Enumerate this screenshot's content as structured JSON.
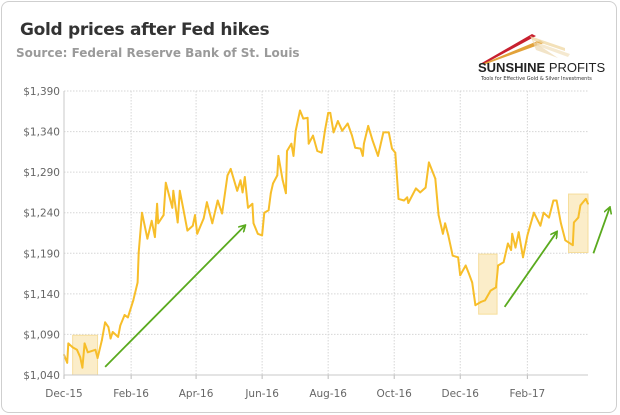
{
  "header": {
    "title": "Gold prices after Fed hikes",
    "subtitle": "Source: Federal Reserve Bank of St. Louis"
  },
  "logo": {
    "name_bold": "SUNSHINE",
    "name_light": "PROFITS",
    "tagline": "Tools for Effective Gold & Silver Investments"
  },
  "chart_data": {
    "type": "line",
    "title": "Gold prices after Fed hikes",
    "xlabel": "",
    "ylabel": "",
    "grid": true,
    "legend": "none",
    "line_color": "#F7BE2A",
    "x_range": [
      "2015-12-01",
      "2017-03-29"
    ],
    "ylim": [
      1040,
      1390
    ],
    "y_ticks": [
      1040,
      1090,
      1140,
      1190,
      1240,
      1290,
      1340,
      1390
    ],
    "y_tick_labels": [
      "$1,040",
      "$1,090",
      "$1,140",
      "$1,190",
      "$1,240",
      "$1,290",
      "$1,340",
      "$1,390"
    ],
    "x_ticks": [
      "2015-12-01",
      "2016-02-01",
      "2016-04-01",
      "2016-06-01",
      "2016-08-01",
      "2016-10-01",
      "2016-12-01",
      "2017-02-01"
    ],
    "x_tick_labels": [
      "Dec-15",
      "Feb-16",
      "Apr-16",
      "Jun-16",
      "Aug-16",
      "Oct-16",
      "Dec-16",
      "Feb-17"
    ],
    "series": [
      {
        "x": [
          "2015-12-01",
          "2015-12-04",
          "2015-12-05",
          "2015-12-09",
          "2015-12-13",
          "2015-12-16",
          "2015-12-18",
          "2015-12-20",
          "2015-12-23",
          "2015-12-30",
          "2016-01-01",
          "2016-01-05",
          "2016-01-08",
          "2016-01-11",
          "2016-01-13",
          "2016-01-15",
          "2016-01-20",
          "2016-01-22",
          "2016-01-26",
          "2016-01-29",
          "2016-02-03",
          "2016-02-07",
          "2016-02-08",
          "2016-02-11",
          "2016-02-16",
          "2016-02-20",
          "2016-02-23",
          "2016-02-25",
          "2016-02-26",
          "2016-03-02",
          "2016-03-04",
          "2016-03-10",
          "2016-03-11",
          "2016-03-15",
          "2016-03-17",
          "2016-03-20",
          "2016-03-24",
          "2016-03-29",
          "2016-03-31",
          "2016-04-02",
          "2016-04-08",
          "2016-04-11",
          "2016-04-16",
          "2016-04-21",
          "2016-04-25",
          "2016-04-30",
          "2016-05-03",
          "2016-05-09",
          "2016-05-12",
          "2016-05-14",
          "2016-05-16",
          "2016-05-19",
          "2016-05-23",
          "2016-05-24",
          "2016-05-28",
          "2016-06-01",
          "2016-06-03",
          "2016-06-07",
          "2016-06-09",
          "2016-06-11",
          "2016-06-15",
          "2016-06-16",
          "2016-06-20",
          "2016-06-23",
          "2016-06-24",
          "2016-06-28",
          "2016-06-30",
          "2016-07-02",
          "2016-07-06",
          "2016-07-09",
          "2016-07-13",
          "2016-07-14",
          "2016-07-18",
          "2016-07-22",
          "2016-07-26",
          "2016-07-29",
          "2016-08-01",
          "2016-08-03",
          "2016-08-06",
          "2016-08-10",
          "2016-08-14",
          "2016-08-19",
          "2016-08-23",
          "2016-08-26",
          "2016-08-31",
          "2016-09-02",
          "2016-09-03",
          "2016-09-07",
          "2016-09-11",
          "2016-09-16",
          "2016-09-21",
          "2016-09-26",
          "2016-09-29",
          "2016-10-02",
          "2016-10-05",
          "2016-10-10",
          "2016-10-13",
          "2016-10-14",
          "2016-10-21",
          "2016-10-25",
          "2016-10-30",
          "2016-11-02",
          "2016-11-08",
          "2016-11-11",
          "2016-11-15",
          "2016-11-17",
          "2016-11-20",
          "2016-11-24",
          "2016-11-29",
          "2016-12-01",
          "2016-12-06",
          "2016-12-09",
          "2016-12-12",
          "2016-12-15",
          "2016-12-20",
          "2016-12-24",
          "2016-12-29",
          "2017-01-03",
          "2017-01-05",
          "2017-01-10",
          "2017-01-14",
          "2017-01-17",
          "2017-01-18",
          "2017-01-21",
          "2017-01-24",
          "2017-01-28",
          "2017-02-01",
          "2017-02-07",
          "2017-02-13",
          "2017-02-16",
          "2017-02-21",
          "2017-02-25",
          "2017-02-28",
          "2017-03-04",
          "2017-03-08",
          "2017-03-15",
          "2017-03-16",
          "2017-03-20",
          "2017-03-22",
          "2017-03-27",
          "2017-03-29"
        ],
        "values": [
          1065,
          1055,
          1079,
          1074,
          1071,
          1062,
          1049,
          1079,
          1068,
          1071,
          1061,
          1083,
          1105,
          1099,
          1085,
          1093,
          1087,
          1101,
          1114,
          1111,
          1132,
          1154,
          1191,
          1240,
          1208,
          1230,
          1210,
          1251,
          1227,
          1237,
          1277,
          1246,
          1267,
          1228,
          1267,
          1246,
          1218,
          1224,
          1237,
          1214,
          1233,
          1253,
          1227,
          1255,
          1239,
          1286,
          1294,
          1267,
          1280,
          1265,
          1284,
          1246,
          1251,
          1227,
          1214,
          1212,
          1240,
          1243,
          1264,
          1276,
          1286,
          1310,
          1280,
          1264,
          1316,
          1325,
          1310,
          1341,
          1366,
          1356,
          1357,
          1325,
          1335,
          1316,
          1314,
          1341,
          1363,
          1363,
          1339,
          1353,
          1341,
          1350,
          1335,
          1320,
          1319,
          1310,
          1325,
          1347,
          1329,
          1310,
          1339,
          1339,
          1319,
          1314,
          1257,
          1255,
          1259,
          1252,
          1270,
          1265,
          1271,
          1302,
          1282,
          1237,
          1214,
          1227,
          1212,
          1187,
          1185,
          1163,
          1175,
          1165,
          1154,
          1126,
          1130,
          1132,
          1144,
          1148,
          1175,
          1179,
          1202,
          1194,
          1214,
          1197,
          1216,
          1185,
          1212,
          1240,
          1224,
          1240,
          1234,
          1255,
          1255,
          1227,
          1206,
          1200,
          1228,
          1234,
          1249,
          1257,
          1251
        ]
      }
    ],
    "annotations": {
      "highlight_color": "#FBEBC0",
      "arrow_color": "#5AAA1E",
      "highlights": [
        {
          "x": [
            "2015-12-09",
            "2016-01-01"
          ],
          "y": [
            1040,
            1089
          ]
        },
        {
          "x": [
            "2016-12-18",
            "2017-01-04"
          ],
          "y": [
            1115,
            1189
          ]
        },
        {
          "x": [
            "2017-03-11",
            "2017-03-29"
          ],
          "y": [
            1191,
            1263
          ]
        }
      ],
      "arrows": [
        {
          "from": [
            "2016-01-08",
            1050
          ],
          "to": [
            "2016-05-16",
            1224
          ]
        },
        {
          "from": [
            "2017-01-11",
            1124
          ],
          "to": [
            "2017-02-28",
            1216
          ]
        },
        {
          "from": [
            "2017-04-03",
            1190
          ],
          "to": [
            "2017-04-18",
            1246
          ]
        }
      ]
    }
  }
}
